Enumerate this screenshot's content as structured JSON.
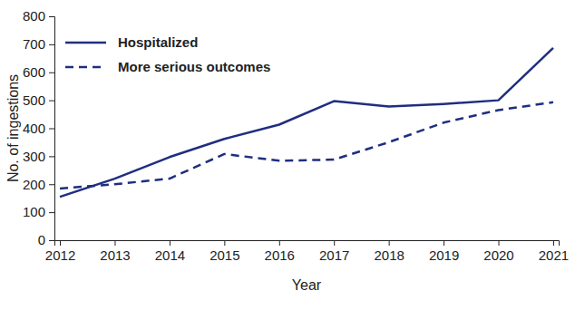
{
  "chart_data": {
    "type": "line",
    "x_label": "Year",
    "y_label": "No. of ingestions",
    "x": [
      2012,
      2013,
      2014,
      2015,
      2016,
      2017,
      2018,
      2019,
      2020,
      2021
    ],
    "xlim": [
      2011.9,
      2021.1
    ],
    "xticks": [
      2012,
      2013,
      2014,
      2015,
      2016,
      2017,
      2018,
      2019,
      2020,
      2021
    ],
    "ylim": [
      0,
      800
    ],
    "yticks": [
      0,
      100,
      200,
      300,
      400,
      500,
      600,
      700,
      800
    ],
    "grid": false,
    "legend": "top-left",
    "series": [
      {
        "name": "Hospitalized",
        "color": "#1f2e7f",
        "line_style": "solid",
        "values": [
          155,
          220,
          297,
          362,
          413,
          497,
          478,
          487,
          500,
          687
        ]
      },
      {
        "name": "More serious outcomes",
        "color": "#1f2e7f",
        "line_style": "dashed",
        "values": [
          185,
          200,
          220,
          308,
          284,
          288,
          350,
          420,
          465,
          493
        ]
      }
    ]
  }
}
